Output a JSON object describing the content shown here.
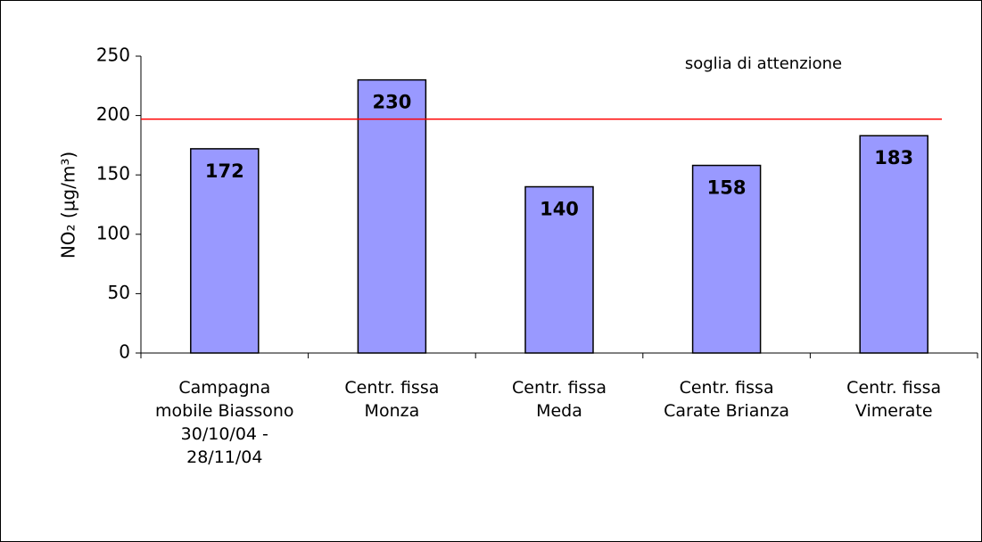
{
  "chart_data": {
    "type": "bar",
    "y_label": "NO₂ (µg/m³)",
    "categories": [
      "Campagna mobile Biassono 30/10/04 - 28/11/04",
      "Centr. fissa Monza",
      "Centr. fissa Meda",
      "Centr. fissa Carate Brianza",
      "Centr. fissa Vimerate"
    ],
    "values": [
      172,
      230,
      140,
      158,
      183
    ],
    "color": "#9999ff",
    "ylim": [
      0,
      250
    ],
    "yticks": [
      0,
      50,
      100,
      150,
      200,
      250
    ],
    "threshold": {
      "label": "soglia di attenzione",
      "value": 197,
      "color": "#ff0000"
    }
  }
}
